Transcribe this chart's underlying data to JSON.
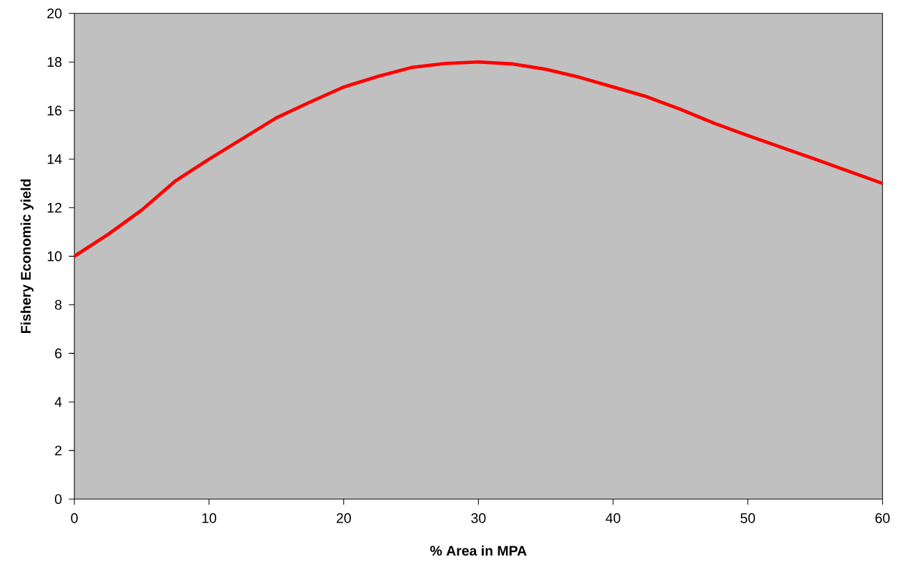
{
  "chart_data": {
    "type": "line",
    "xlabel": "% Area in MPA",
    "ylabel": "Fishery Economic yield",
    "x": [
      0,
      2.5,
      5,
      7.5,
      10,
      12.5,
      15,
      17.5,
      20,
      22.5,
      25,
      27.5,
      30,
      32.5,
      35,
      37.5,
      40,
      42.5,
      45,
      47.5,
      50,
      55,
      60
    ],
    "series": [
      {
        "color": "#ff0000",
        "values": [
          10.0,
          10.9,
          11.9,
          13.1,
          14.0,
          14.85,
          15.7,
          16.35,
          16.97,
          17.4,
          17.77,
          17.94,
          18.0,
          17.92,
          17.7,
          17.37,
          16.97,
          16.57,
          16.05,
          15.48,
          14.97,
          14.0,
          13.0
        ]
      }
    ],
    "xlim": [
      0,
      60
    ],
    "xticks": [
      0,
      10,
      20,
      30,
      40,
      50,
      60
    ],
    "ylim": [
      0,
      20
    ],
    "yticks": [
      0,
      2,
      4,
      6,
      8,
      10,
      12,
      14,
      16,
      18,
      20
    ],
    "grid": false,
    "marker": "none",
    "line_style": "solid"
  }
}
